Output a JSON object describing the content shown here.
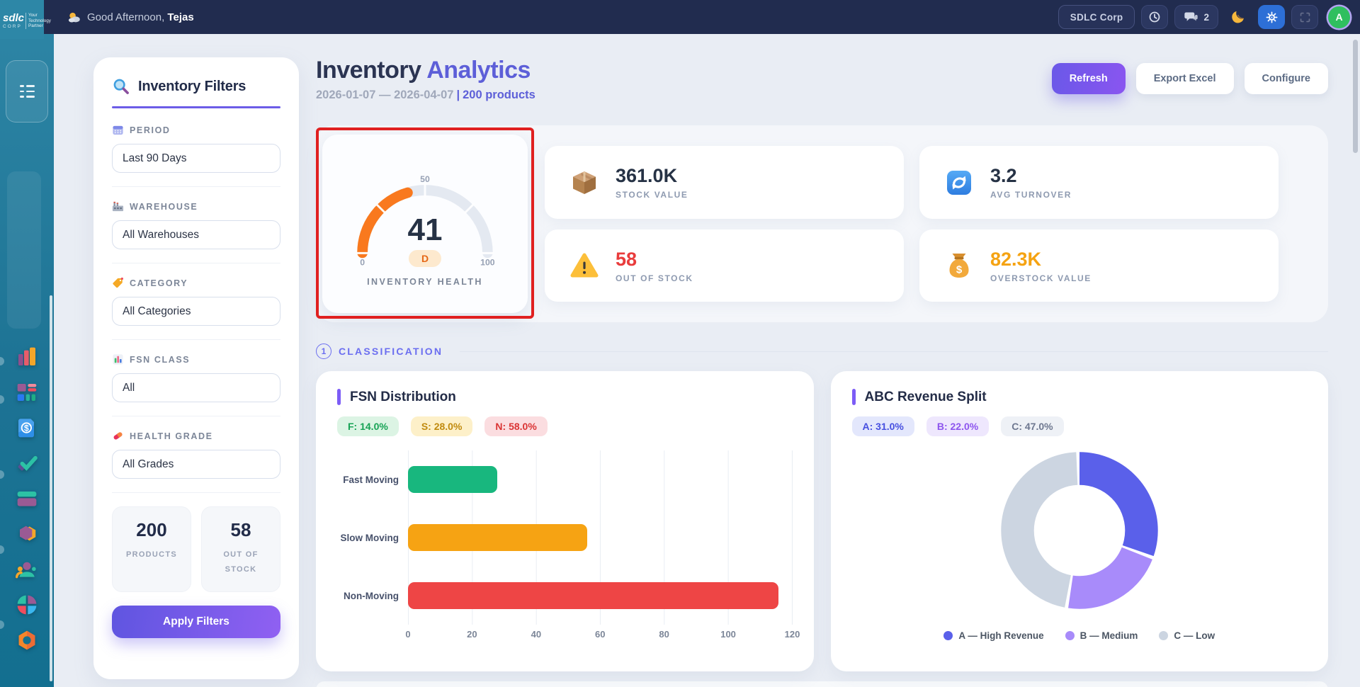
{
  "topbar": {
    "greeting_prefix": "Good Afternoon,",
    "greeting_name": "Tejas",
    "company_button": "SDLC Corp",
    "chat_badge": "2",
    "avatar_letter": "A",
    "icons": [
      "weather-sun-cloud",
      "clock",
      "chat",
      "moon",
      "gear",
      "fullscreen"
    ]
  },
  "logo": {
    "brand": "sdlc",
    "sub": "CORP",
    "tagline": "Your Technology Partner"
  },
  "sidebar": {
    "app_icons": [
      "bar-chart",
      "modules-grid",
      "invoice-dollar",
      "check-tasks",
      "credit-card",
      "hexagon-box",
      "team-users",
      "pie-chart",
      "donut-ring"
    ]
  },
  "header": {
    "title_primary": "Inventory",
    "title_accent": "Analytics",
    "date_range": "2026-01-07 — 2026-04-07",
    "separator": "|",
    "products_count": "200 products",
    "refresh_label": "Refresh",
    "export_label": "Export Excel",
    "configure_label": "Configure"
  },
  "filters": {
    "title": "Inventory Filters",
    "sections": [
      {
        "icon": "calendar-icon",
        "label": "PERIOD",
        "value": "Last 90 Days"
      },
      {
        "icon": "factory-icon",
        "label": "WAREHOUSE",
        "value": "All Warehouses"
      },
      {
        "icon": "tag-icon",
        "label": "CATEGORY",
        "value": "All Categories"
      },
      {
        "icon": "mini-bars-icon",
        "label": "FSN CLASS",
        "value": "All"
      },
      {
        "icon": "pill-icon",
        "label": "HEALTH GRADE",
        "value": "All Grades"
      }
    ],
    "stats": [
      {
        "value": "200",
        "label": "PRODUCTS"
      },
      {
        "value": "58",
        "label": "OUT OF STOCK"
      }
    ],
    "apply_label": "Apply Filters"
  },
  "kpi": {
    "gauge": {
      "value": 41,
      "min": "0",
      "mid": "50",
      "max": "100",
      "grade": "D",
      "label": "INVENTORY HEALTH",
      "arc_color": "#f9791e",
      "track_color": "#e4e9f1"
    },
    "cards": [
      {
        "icon": "package-icon",
        "value": "361.0K",
        "label": "STOCK VALUE"
      },
      {
        "icon": "cycle-icon",
        "value": "3.2",
        "label": "AVG TURNOVER"
      },
      {
        "icon": "warning-icon",
        "value": "58",
        "label": "OUT OF STOCK"
      },
      {
        "icon": "money-bag-icon",
        "value": "82.3K",
        "label": "OVERSTOCK VALUE"
      }
    ]
  },
  "classification": {
    "index": "1",
    "title": "CLASSIFICATION",
    "fsn": {
      "title": "FSN Distribution",
      "badges": [
        "F: 14.0%",
        "S: 28.0%",
        "N: 58.0%"
      ],
      "chart_data": {
        "type": "bar",
        "orientation": "horizontal",
        "categories": [
          "Fast Moving",
          "Slow Moving",
          "Non-Moving"
        ],
        "values": [
          28,
          56,
          116
        ],
        "colors": [
          "#18b77e",
          "#f6a313",
          "#ee4545"
        ],
        "xmax": 120,
        "xticks": [
          "0",
          "20",
          "40",
          "60",
          "80",
          "100",
          "120"
        ]
      }
    },
    "abc": {
      "title": "ABC Revenue Split",
      "badges": [
        "A: 31.0%",
        "B: 22.0%",
        "C: 47.0%"
      ],
      "chart_data": {
        "type": "donut",
        "slices": [
          {
            "label": "A — High Revenue",
            "pct": 31,
            "color": "#5a60ea"
          },
          {
            "label": "B — Medium",
            "pct": 22,
            "color": "#a88bfa"
          },
          {
            "label": "C — Low",
            "pct": 47,
            "color": "#ccd5e1"
          }
        ]
      }
    }
  }
}
